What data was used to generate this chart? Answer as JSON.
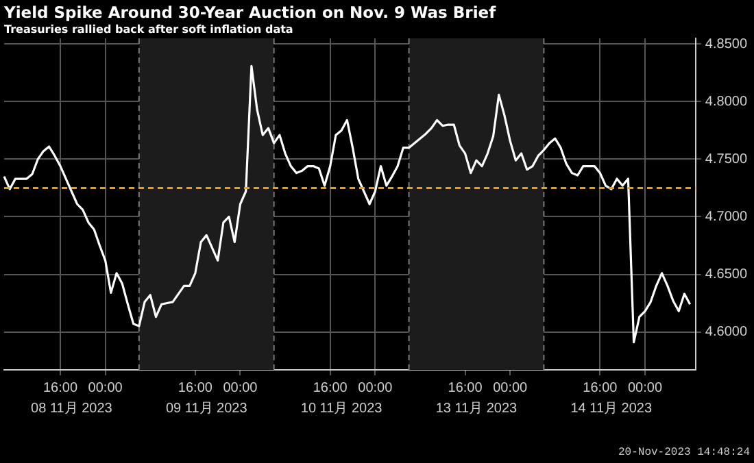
{
  "chart_data": {
    "type": "line",
    "title": "Yield Spike Around 30-Year Auction on Nov. 9 Was Brief",
    "subtitle": "Treasuries rallied back after soft inflation data",
    "annotations": [
      "08 11月 2023",
      "09 11月 2023",
      "10 11月 2023",
      "13 11月 2023",
      "14 11月 2023",
      "20-Nov-2023 14:48:24"
    ],
    "categories": [
      null,
      null,
      null,
      null,
      null,
      null,
      null,
      null,
      null,
      null,
      "16:00",
      null,
      null,
      null,
      null,
      null,
      null,
      null,
      "00:00",
      null,
      null,
      null,
      null,
      null,
      null,
      null,
      null,
      null,
      null,
      null,
      null,
      null,
      null,
      null,
      "16:00",
      null,
      null,
      null,
      null,
      null,
      null,
      null,
      "00:00",
      null,
      null,
      null,
      null,
      null,
      null,
      null,
      null,
      null,
      null,
      null,
      null,
      null,
      null,
      null,
      "16:00",
      null,
      null,
      null,
      null,
      null,
      null,
      null,
      "00:00",
      null,
      null,
      null,
      null,
      null,
      null,
      null,
      null,
      null,
      null,
      null,
      null,
      null,
      null,
      null,
      "16:00",
      null,
      null,
      null,
      null,
      null,
      null,
      null,
      "00:00",
      null,
      null,
      null,
      null,
      null,
      null,
      null,
      null,
      null,
      null,
      null,
      null,
      null,
      null,
      null,
      "16:00",
      null,
      null,
      null,
      null,
      null,
      null,
      null,
      "00:00",
      null,
      null,
      null,
      null,
      null,
      null,
      null,
      null,
      null
    ],
    "series": [
      {
        "color": "#ffffff",
        "values": [
          4.735,
          4.724,
          4.733,
          4.733,
          4.733,
          4.737,
          4.75,
          4.757,
          4.761,
          4.753,
          4.744,
          4.733,
          4.722,
          4.711,
          4.706,
          4.695,
          4.689,
          4.675,
          4.662,
          4.634,
          4.651,
          4.642,
          4.624,
          4.607,
          4.605,
          4.626,
          4.632,
          4.613,
          4.624,
          4.625,
          4.626,
          4.633,
          4.64,
          4.64,
          4.651,
          4.678,
          4.684,
          4.673,
          4.662,
          4.695,
          4.7,
          4.678,
          4.711,
          4.722,
          4.831,
          4.793,
          4.771,
          4.777,
          4.764,
          4.771,
          4.755,
          4.744,
          4.738,
          4.74,
          4.744,
          4.744,
          4.742,
          4.727,
          4.744,
          4.771,
          4.775,
          4.784,
          4.76,
          4.733,
          4.722,
          4.711,
          4.722,
          4.744,
          4.727,
          4.735,
          4.744,
          4.76,
          4.76,
          4.764,
          4.768,
          4.772,
          4.777,
          4.784,
          4.779,
          4.78,
          4.78,
          4.762,
          4.755,
          4.738,
          4.749,
          4.744,
          4.755,
          4.77,
          4.806,
          4.788,
          4.766,
          4.749,
          4.755,
          4.741,
          4.744,
          4.753,
          4.758,
          4.764,
          4.768,
          4.76,
          4.746,
          4.738,
          4.736,
          4.744,
          4.744,
          4.744,
          4.738,
          4.727,
          4.724,
          4.733,
          4.727,
          4.733,
          4.591,
          4.613,
          4.618,
          4.626,
          4.64,
          4.651,
          4.64,
          4.627,
          4.618,
          4.633,
          4.624,
          null
        ]
      }
    ],
    "ylim": [
      4.567,
      4.855
    ],
    "yticks": [
      {
        "value": 4.6,
        "label": "4.6000"
      },
      {
        "value": 4.65,
        "label": "4.6500"
      },
      {
        "value": 4.7,
        "label": "4.7000"
      },
      {
        "value": 4.75,
        "label": "4.7500"
      },
      {
        "value": 4.8,
        "label": "4.8000"
      },
      {
        "value": 4.85,
        "label": "4.8500"
      }
    ],
    "ref_lines": [
      {
        "axis": "y",
        "value": 4.725,
        "color": "#f39c12",
        "line_style": "dashed"
      }
    ],
    "grid": true,
    "legend": false,
    "marker": "none",
    "line_style": "solid"
  }
}
